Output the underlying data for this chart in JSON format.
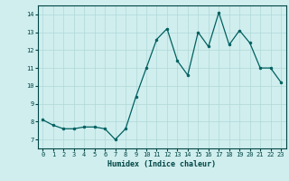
{
  "x": [
    0,
    1,
    2,
    3,
    4,
    5,
    6,
    7,
    8,
    9,
    10,
    11,
    12,
    13,
    14,
    15,
    16,
    17,
    18,
    19,
    20,
    21,
    22,
    23
  ],
  "y": [
    8.1,
    7.8,
    7.6,
    7.6,
    7.7,
    7.7,
    7.6,
    7.0,
    7.6,
    9.4,
    11.0,
    12.6,
    13.2,
    11.4,
    10.6,
    13.0,
    12.2,
    14.1,
    12.3,
    13.1,
    12.4,
    11.0,
    11.0,
    10.2
  ],
  "xlabel": "Humidex (Indice chaleur)",
  "ylim": [
    6.5,
    14.5
  ],
  "xlim": [
    -0.5,
    23.5
  ],
  "yticks": [
    7,
    8,
    9,
    10,
    11,
    12,
    13,
    14
  ],
  "xticks": [
    0,
    1,
    2,
    3,
    4,
    5,
    6,
    7,
    8,
    9,
    10,
    11,
    12,
    13,
    14,
    15,
    16,
    17,
    18,
    19,
    20,
    21,
    22,
    23
  ],
  "line_color": "#006060",
  "marker_color": "#006060",
  "bg_color": "#d0eeee",
  "grid_color": "#b0d8d8",
  "tick_label_color": "#004444",
  "axis_label_color": "#004444"
}
